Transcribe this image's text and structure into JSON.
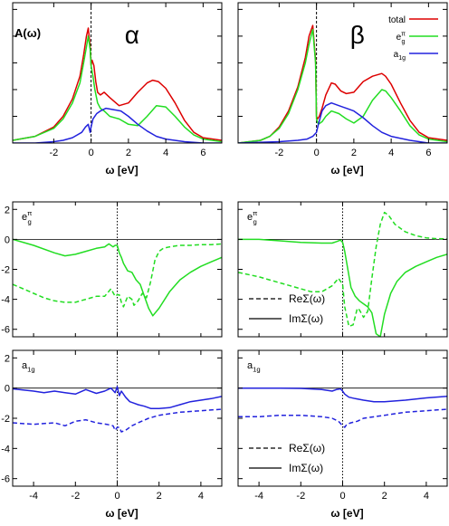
{
  "chart_data": [
    {
      "type": "line",
      "panel": "top-left",
      "ylabel": "A(ω)",
      "xlabel": "ω [eV]",
      "annotation": "α",
      "xlim": [
        -4.2,
        7
      ],
      "ylim": [
        0,
        1.05
      ],
      "xticks": [
        -2,
        0,
        2,
        4,
        6
      ],
      "y_tick_labels": "none",
      "fermi_level_line": 0,
      "series": [
        {
          "name": "total",
          "color": "#dd0000",
          "x": [
            -4.2,
            -3,
            -2,
            -1.5,
            -1,
            -0.6,
            -0.4,
            -0.25,
            -0.15,
            -0.05,
            0,
            0.05,
            0.15,
            0.25,
            0.35,
            0.5,
            0.7,
            1,
            1.5,
            2,
            2.5,
            3,
            3.3,
            3.6,
            4,
            4.5,
            5,
            5.5,
            6,
            7
          ],
          "y": [
            0.02,
            0.05,
            0.12,
            0.2,
            0.33,
            0.5,
            0.66,
            0.8,
            0.86,
            0.72,
            0.58,
            0.62,
            0.58,
            0.46,
            0.38,
            0.36,
            0.38,
            0.34,
            0.28,
            0.3,
            0.38,
            0.45,
            0.47,
            0.46,
            0.41,
            0.3,
            0.17,
            0.08,
            0.04,
            0.02
          ]
        },
        {
          "name": "e_g^π",
          "color": "#22dd22",
          "x": [
            -4.2,
            -3,
            -2,
            -1.5,
            -1,
            -0.6,
            -0.4,
            -0.25,
            -0.15,
            -0.05,
            0,
            0.1,
            0.2,
            0.35,
            0.5,
            0.7,
            1,
            1.5,
            2,
            2.5,
            3,
            3.5,
            4,
            4.5,
            5,
            5.5,
            6,
            7
          ],
          "y": [
            0.02,
            0.05,
            0.11,
            0.18,
            0.3,
            0.45,
            0.6,
            0.72,
            0.8,
            0.7,
            0.58,
            0.5,
            0.4,
            0.3,
            0.26,
            0.24,
            0.2,
            0.18,
            0.14,
            0.13,
            0.2,
            0.28,
            0.27,
            0.2,
            0.12,
            0.06,
            0.03,
            0.01
          ]
        },
        {
          "name": "a_1g",
          "color": "#2222dd",
          "x": [
            -4.2,
            -3,
            -2,
            -1.5,
            -1,
            -0.5,
            -0.3,
            -0.15,
            -0.05,
            0,
            0.1,
            0.3,
            0.5,
            0.8,
            1.2,
            1.6,
            2,
            2.5,
            3,
            3.5,
            4,
            5,
            6,
            7
          ],
          "y": [
            0,
            0,
            0.01,
            0.02,
            0.04,
            0.08,
            0.12,
            0.14,
            0.08,
            0.12,
            0.18,
            0.22,
            0.24,
            0.26,
            0.25,
            0.24,
            0.2,
            0.14,
            0.09,
            0.05,
            0.03,
            0.01,
            0,
            0
          ]
        }
      ]
    },
    {
      "type": "line",
      "panel": "top-right",
      "xlabel": "ω [eV]",
      "annotation": "β",
      "xlim": [
        -4.2,
        7
      ],
      "ylim": [
        0,
        1.05
      ],
      "xticks": [
        -2,
        0,
        2,
        4,
        6
      ],
      "y_tick_labels": "none",
      "fermi_level_line": 0,
      "legend_position": "top-right",
      "legend_entries": [
        "total",
        "e",
        "a"
      ],
      "series": [
        {
          "name": "total",
          "color": "#dd0000",
          "x": [
            -4.2,
            -3,
            -2.5,
            -2,
            -1.5,
            -1,
            -0.6,
            -0.4,
            -0.2,
            -0.05,
            0,
            0.05,
            0.15,
            0.3,
            0.5,
            0.8,
            1,
            1.3,
            1.6,
            2,
            2.5,
            3,
            3.5,
            3.7,
            4,
            4.5,
            5,
            5.5,
            6,
            7
          ],
          "y": [
            0,
            0.02,
            0.05,
            0.12,
            0.24,
            0.42,
            0.64,
            0.8,
            0.88,
            0.62,
            0.2,
            0.18,
            0.2,
            0.26,
            0.36,
            0.45,
            0.44,
            0.39,
            0.37,
            0.38,
            0.46,
            0.5,
            0.52,
            0.5,
            0.44,
            0.3,
            0.17,
            0.08,
            0.04,
            0.02
          ]
        },
        {
          "name": "e_g^π",
          "color": "#22dd22",
          "x": [
            -4.2,
            -3,
            -2.5,
            -2,
            -1.5,
            -1,
            -0.6,
            -0.4,
            -0.2,
            -0.05,
            0,
            0.1,
            0.3,
            0.5,
            0.8,
            1.2,
            1.6,
            2,
            2.5,
            3,
            3.5,
            3.7,
            4,
            4.5,
            5,
            5.5,
            6,
            7
          ],
          "y": [
            0,
            0.02,
            0.05,
            0.11,
            0.22,
            0.4,
            0.6,
            0.74,
            0.85,
            0.6,
            0.18,
            0.14,
            0.16,
            0.2,
            0.24,
            0.22,
            0.18,
            0.15,
            0.2,
            0.32,
            0.4,
            0.39,
            0.34,
            0.24,
            0.13,
            0.06,
            0.03,
            0.01
          ]
        },
        {
          "name": "a_1g",
          "color": "#2222dd",
          "x": [
            -4.2,
            -2,
            -1,
            -0.5,
            -0.2,
            0,
            0.1,
            0.3,
            0.5,
            0.8,
            1.2,
            1.6,
            2,
            2.5,
            3,
            3.5,
            4,
            5,
            6,
            7
          ],
          "y": [
            0,
            0.01,
            0.02,
            0.03,
            0.05,
            0.08,
            0.14,
            0.24,
            0.28,
            0.3,
            0.28,
            0.26,
            0.24,
            0.19,
            0.13,
            0.08,
            0.05,
            0.02,
            0,
            0
          ]
        }
      ]
    },
    {
      "type": "line",
      "panel": "middle-left",
      "label": "e",
      "xlim": [
        -5,
        5
      ],
      "ylim": [
        -6.5,
        2.5
      ],
      "yticks": [
        2,
        0,
        -2,
        -4,
        -6
      ],
      "fermi_level_line": 0,
      "series": [
        {
          "name": "ImΣ(ω)",
          "color": "#22dd22",
          "dash": "solid",
          "x": [
            -5,
            -4,
            -3,
            -2.5,
            -2,
            -1.5,
            -1,
            -0.6,
            -0.4,
            -0.2,
            -0.1,
            0,
            0.1,
            0.2,
            0.3,
            0.5,
            0.7,
            0.9,
            1.1,
            1.3,
            1.5,
            1.7,
            2,
            2.5,
            3,
            3.5,
            4,
            4.5,
            5
          ],
          "y": [
            0,
            -0.4,
            -0.9,
            -1.1,
            -1,
            -0.8,
            -0.6,
            -0.5,
            -0.3,
            -0.5,
            -0.4,
            -0.4,
            -0.9,
            -1.2,
            -1.6,
            -2.1,
            -2.2,
            -2.7,
            -3,
            -3.8,
            -4.6,
            -5.1,
            -4.6,
            -3.5,
            -2.7,
            -2.2,
            -1.8,
            -1.5,
            -1.2
          ]
        },
        {
          "name": "ReΣ(ω)",
          "color": "#22dd22",
          "dash": "dashed",
          "x": [
            -5,
            -4.5,
            -4,
            -3.5,
            -3,
            -2.5,
            -2,
            -1.5,
            -1,
            -0.6,
            -0.3,
            -0.1,
            0,
            0.1,
            0.2,
            0.3,
            0.5,
            0.7,
            0.8,
            1,
            1.2,
            1.4,
            1.6,
            1.8,
            2,
            2.2,
            2.5,
            3,
            3.5,
            4,
            4.5,
            5
          ],
          "y": [
            -3,
            -3.3,
            -3.6,
            -3.9,
            -4.1,
            -4.2,
            -4.2,
            -4,
            -3.8,
            -3.8,
            -3.3,
            -3.8,
            -3.7,
            -3.7,
            -4.2,
            -4.5,
            -3.8,
            -4,
            -4.4,
            -4.1,
            -3.6,
            -3.9,
            -2.8,
            -1.4,
            -0.8,
            -0.6,
            -0.5,
            -0.4,
            -0.4,
            -0.35,
            -0.35,
            -0.3
          ]
        }
      ]
    },
    {
      "type": "line",
      "panel": "middle-right",
      "label": "e",
      "xlim": [
        -5,
        5
      ],
      "ylim": [
        -6.5,
        2.5
      ],
      "fermi_level_line": 0,
      "legend_position": "bottom-right",
      "series": [
        {
          "name": "ImΣ(ω)",
          "color": "#22dd22",
          "dash": "solid",
          "x": [
            -5,
            -4,
            -3,
            -2,
            -1,
            -0.5,
            -0.3,
            -0.1,
            0,
            0.1,
            0.2,
            0.4,
            0.6,
            0.8,
            1,
            1.2,
            1.4,
            1.6,
            1.8,
            2,
            2.3,
            2.6,
            3,
            3.5,
            4,
            4.5,
            5
          ],
          "y": [
            0,
            0,
            -0.1,
            -0.2,
            -0.25,
            -0.25,
            -0.15,
            -0.05,
            -0.2,
            -0.8,
            -1.6,
            -3.2,
            -3.8,
            -4.1,
            -4.3,
            -4.5,
            -4.9,
            -6.3,
            -6.5,
            -5,
            -3.6,
            -2.8,
            -2.2,
            -1.8,
            -1.5,
            -1.2,
            -1
          ]
        },
        {
          "name": "ReΣ(ω)",
          "color": "#22dd22",
          "dash": "dashed",
          "x": [
            -5,
            -4,
            -3,
            -2,
            -1.5,
            -1,
            -0.5,
            -0.2,
            0,
            0.1,
            0.3,
            0.5,
            0.7,
            0.8,
            1,
            1.2,
            1.4,
            1.6,
            1.8,
            2,
            2.2,
            2.5,
            3,
            3.5,
            4,
            4.5,
            5
          ],
          "y": [
            -2.2,
            -2.5,
            -2.9,
            -3.3,
            -3.5,
            -3.5,
            -3.1,
            -2.6,
            -3,
            -4.5,
            -5.8,
            -5.7,
            -4.6,
            -4.7,
            -5.2,
            -4.8,
            -2.6,
            -0.5,
            1,
            1.8,
            1.6,
            1,
            0.5,
            0.25,
            0.1,
            0.05,
            0.03
          ]
        }
      ]
    },
    {
      "type": "line",
      "panel": "bottom-left",
      "label": "a",
      "xlabel": "ω [eV]",
      "xlim": [
        -5,
        5
      ],
      "ylim": [
        -6.5,
        2.5
      ],
      "xticks": [
        -4,
        -2,
        0,
        2,
        4
      ],
      "yticks": [
        2,
        0,
        -2,
        -4,
        -6
      ],
      "fermi_level_line": 0,
      "series": [
        {
          "name": "ImΣ(ω)",
          "color": "#2222dd",
          "dash": "solid",
          "x": [
            -5,
            -4,
            -3.5,
            -3,
            -2.5,
            -2,
            -1.5,
            -1,
            -0.6,
            -0.3,
            -0.1,
            0,
            0.1,
            0.2,
            0.4,
            0.6,
            0.8,
            1,
            1.3,
            1.6,
            2,
            2.5,
            3,
            3.5,
            4,
            4.5,
            5
          ],
          "y": [
            -0.05,
            -0.2,
            -0.3,
            -0.2,
            -0.3,
            -0.4,
            -0.1,
            -0.35,
            -0.2,
            0,
            -0.3,
            0.1,
            -0.5,
            -0.2,
            -0.6,
            -0.9,
            -1,
            -1.1,
            -1.2,
            -1.35,
            -1.35,
            -1.3,
            -1.1,
            -0.9,
            -0.8,
            -0.7,
            -0.55
          ]
        },
        {
          "name": "ReΣ(ω)",
          "color": "#2222dd",
          "dash": "dashed",
          "x": [
            -5,
            -4,
            -3,
            -2.5,
            -2,
            -1.5,
            -1,
            -0.5,
            -0.2,
            -0.1,
            0,
            0.1,
            0.2,
            0.4,
            0.7,
            1,
            1.5,
            2,
            3,
            4,
            5
          ],
          "y": [
            -2.3,
            -2.4,
            -2.3,
            -2.5,
            -2.2,
            -2.1,
            -2.3,
            -2.4,
            -2.5,
            -2.8,
            -2.6,
            -2.6,
            -2.9,
            -2.8,
            -2.5,
            -2.3,
            -2,
            -1.8,
            -1.6,
            -1.5,
            -1.4
          ]
        }
      ]
    },
    {
      "type": "line",
      "panel": "bottom-right",
      "label": "a",
      "xlabel": "ω [eV]",
      "xlim": [
        -5,
        5
      ],
      "ylim": [
        -6.5,
        2.5
      ],
      "xticks": [
        -4,
        -2,
        0,
        2,
        4
      ],
      "fermi_level_line": 0,
      "legend_position": "bottom-right",
      "series": [
        {
          "name": "ImΣ(ω)",
          "color": "#2222dd",
          "dash": "solid",
          "x": [
            -5,
            -3,
            -2,
            -1,
            -0.5,
            -0.3,
            -0.1,
            0,
            0.1,
            0.3,
            0.6,
            1,
            1.5,
            2,
            3,
            4,
            5
          ],
          "y": [
            0,
            0,
            -0.02,
            -0.1,
            -0.2,
            -0.1,
            -0.05,
            -0.2,
            -0.4,
            -0.6,
            -0.7,
            -0.8,
            -0.9,
            -0.9,
            -0.8,
            -0.65,
            -0.55
          ]
        },
        {
          "name": "ReΣ(ω)",
          "color": "#2222dd",
          "dash": "dashed",
          "x": [
            -5,
            -4,
            -3,
            -2,
            -1,
            -0.5,
            -0.2,
            0,
            0.1,
            0.2,
            0.4,
            0.7,
            1,
            2,
            3,
            4,
            5
          ],
          "y": [
            -1.9,
            -1.9,
            -1.8,
            -1.8,
            -1.9,
            -2,
            -2.2,
            -2.5,
            -2.6,
            -2.4,
            -2.3,
            -2.2,
            -2,
            -1.8,
            -1.6,
            -1.5,
            -1.4
          ]
        }
      ]
    }
  ]
}
